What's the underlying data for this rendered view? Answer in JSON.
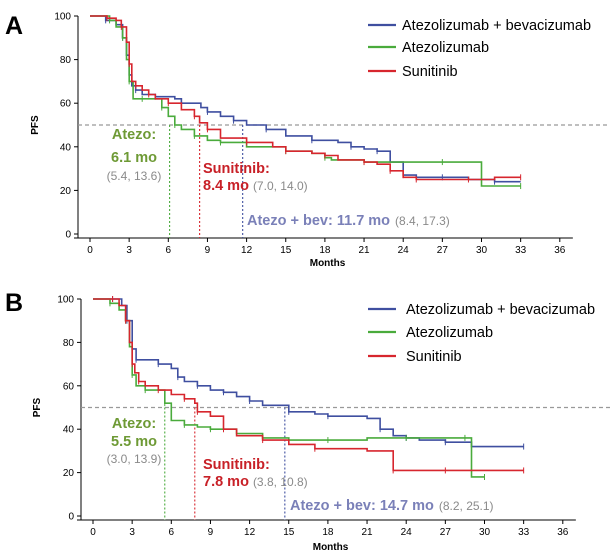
{
  "colors": {
    "atezo_bev": "#3f4fa0",
    "atezo": "#4aab3c",
    "sunitinib": "#d7262e",
    "reference_line": "#999999",
    "atezo_text": "#6e9a35",
    "sunitinib_text": "#c82027",
    "atezo_bev_text": "#7a80b8",
    "ci_gray": "#8a8a8a"
  },
  "chart_data": [
    {
      "type": "line",
      "panel": "A",
      "xlabel": "Months",
      "ylabel": "PFS",
      "xlim": [
        0,
        37
      ],
      "ylim": [
        0,
        100
      ],
      "x_ticks": [
        "0",
        "3",
        "6",
        "9",
        "12",
        "15",
        "18",
        "21",
        "24",
        "27",
        "30",
        "33",
        "36"
      ],
      "y_ticks": [
        "0",
        "20",
        "40",
        "60",
        "80",
        "100"
      ],
      "reference_y": 50,
      "legend_position": "top-right",
      "legend": [
        "Atezolizumab + bevacizumab",
        "Atezolizumab",
        "Sunitinib"
      ],
      "series": [
        {
          "name": "Atezolizumab + bevacizumab",
          "color_key": "atezo_bev",
          "x": [
            0,
            1.2,
            2,
            2.5,
            2.8,
            3,
            3.2,
            3.5,
            4,
            5,
            6.5,
            7,
            8.5,
            9,
            10,
            11,
            12,
            13.5,
            15,
            17,
            19,
            20,
            21,
            22,
            23,
            24,
            25,
            27,
            29,
            31,
            33
          ],
          "y": [
            100,
            98,
            96,
            90,
            82,
            73,
            68,
            66,
            64,
            63,
            62,
            60,
            58,
            56,
            54,
            52,
            50,
            48,
            45,
            43,
            42,
            40,
            39,
            38,
            33,
            27,
            26,
            26,
            25,
            24,
            24
          ]
        },
        {
          "name": "Atezolizumab",
          "color_key": "atezo",
          "x": [
            0,
            1.5,
            2,
            2.5,
            2.8,
            3.0,
            3.3,
            4,
            5,
            5.5,
            6,
            6.5,
            7,
            8,
            9,
            10,
            12,
            15,
            17,
            18,
            18.5,
            21,
            24,
            27,
            30,
            33
          ],
          "y": [
            100,
            98,
            95,
            90,
            80,
            70,
            62,
            62,
            62,
            58,
            54,
            50,
            48,
            45,
            43,
            42,
            40,
            38,
            37,
            35,
            34,
            33,
            33,
            33,
            22,
            22
          ]
        },
        {
          "name": "Sunitinib",
          "color_key": "sunitinib",
          "x": [
            0,
            1.3,
            2,
            2.4,
            2.8,
            3,
            3.2,
            3.5,
            4,
            4.5,
            5,
            6,
            7,
            8,
            8.4,
            9,
            10,
            12,
            14,
            15,
            17,
            18,
            19,
            21,
            22,
            23,
            24,
            25,
            27,
            29,
            31,
            33
          ],
          "y": [
            100,
            99,
            98,
            95,
            88,
            78,
            70,
            68,
            66,
            64,
            62,
            60,
            57,
            54,
            51,
            48,
            44,
            42,
            40,
            38,
            37,
            36,
            34,
            33,
            32,
            29,
            26,
            25,
            25,
            25,
            26,
            26
          ]
        }
      ],
      "medians": [
        {
          "series": "Atezolizumab",
          "x": 6.1
        },
        {
          "series": "Sunitinib",
          "x": 8.4
        },
        {
          "series": "Atezolizumab + bevacizumab",
          "x": 11.7
        }
      ],
      "annotations": [
        {
          "lines": [
            "Atezo:",
            "6.1 mo"
          ],
          "ci": "(5.4, 13.6)",
          "color_key": "atezo_text"
        },
        {
          "lines": [
            "Sunitinib:",
            "8.4 mo"
          ],
          "ci": "(7.0, 14.0)",
          "color_key": "sunitinib_text"
        },
        {
          "lines": [
            "Atezo + bev: 11.7 mo"
          ],
          "ci": "(8.4, 17.3)",
          "color_key": "atezo_bev_text"
        }
      ]
    },
    {
      "type": "line",
      "panel": "B",
      "xlabel": "Months",
      "ylabel": "PFS",
      "xlim": [
        0,
        37
      ],
      "ylim": [
        0,
        100
      ],
      "x_ticks": [
        "0",
        "3",
        "6",
        "9",
        "12",
        "15",
        "18",
        "21",
        "24",
        "27",
        "30",
        "33",
        "36"
      ],
      "y_ticks": [
        "0",
        "20",
        "40",
        "60",
        "80",
        "100"
      ],
      "reference_y": 50,
      "legend_position": "top-right",
      "legend": [
        "Atezolizumab + bevacizumab",
        "Atezolizumab",
        "Sunitinib"
      ],
      "series": [
        {
          "name": "Atezolizumab + bevacizumab",
          "color_key": "atezo_bev",
          "x": [
            0,
            1.5,
            2.2,
            2.6,
            3,
            3.3,
            4.5,
            5,
            6,
            6.5,
            7,
            8,
            9,
            10,
            11,
            12,
            13,
            15,
            17,
            18,
            21,
            22,
            23,
            24,
            25,
            27,
            29,
            33
          ],
          "y": [
            100,
            100,
            97,
            90,
            77,
            72,
            72,
            70,
            68,
            64,
            62,
            60,
            58,
            57,
            55,
            53,
            51,
            48,
            47,
            46,
            45,
            40,
            37,
            36,
            35,
            34,
            32,
            32
          ]
        },
        {
          "name": "Atezolizumab",
          "color_key": "atezo",
          "x": [
            0,
            1.3,
            2,
            2.5,
            2.8,
            3,
            3.3,
            4,
            5,
            5.5,
            6,
            7,
            8,
            9,
            11,
            13,
            15,
            18,
            21,
            24,
            27,
            28.5,
            29,
            30
          ],
          "y": [
            100,
            98,
            95,
            90,
            78,
            65,
            60,
            58,
            58,
            52,
            44,
            42,
            41,
            40,
            38,
            36,
            35,
            35,
            36,
            36,
            36,
            36,
            18,
            18
          ]
        },
        {
          "name": "Sunitinib",
          "color_key": "sunitinib",
          "x": [
            0,
            1.5,
            2,
            2.5,
            2.8,
            3,
            3.2,
            3.5,
            4,
            5,
            6,
            7,
            7.8,
            8,
            9,
            10,
            11,
            13,
            15,
            17,
            21,
            23,
            24,
            27,
            30,
            33
          ],
          "y": [
            100,
            100,
            97,
            90,
            80,
            70,
            66,
            62,
            60,
            58,
            56,
            54,
            52,
            48,
            46,
            40,
            37,
            35,
            33,
            31,
            30,
            21,
            21,
            21,
            21,
            21
          ]
        }
      ],
      "medians": [
        {
          "series": "Atezolizumab",
          "x": 5.5
        },
        {
          "series": "Sunitinib",
          "x": 7.8
        },
        {
          "series": "Atezolizumab + bevacizumab",
          "x": 14.7
        }
      ],
      "annotations": [
        {
          "lines": [
            "Atezo:",
            "5.5 mo"
          ],
          "ci": "(3.0, 13.9)",
          "color_key": "atezo_text"
        },
        {
          "lines": [
            "Sunitinib:",
            "7.8 mo"
          ],
          "ci": "(3.8, 10.8)",
          "color_key": "sunitinib_text"
        },
        {
          "lines": [
            "Atezo + bev: 14.7 mo"
          ],
          "ci": "(8.2, 25.1)",
          "color_key": "atezo_bev_text"
        }
      ]
    }
  ]
}
